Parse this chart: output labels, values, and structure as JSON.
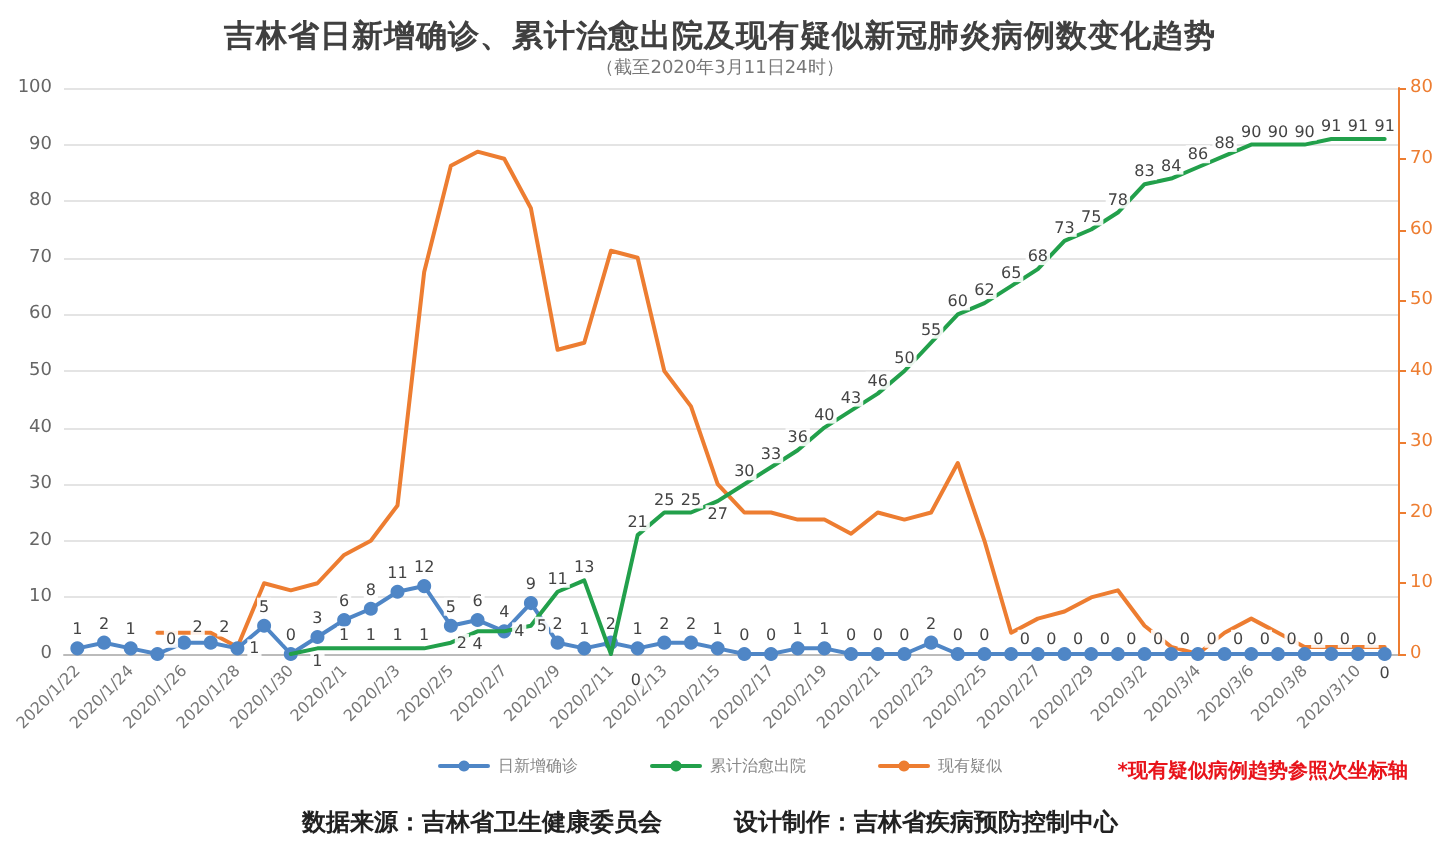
{
  "chart_data": {
    "type": "line",
    "title": "吉林省日新增确诊、累计治愈出院及现有疑似新冠肺炎病例数变化趋势",
    "subtitle": "（截至2020年3月11日24时）",
    "categories": [
      "2020/1/22",
      null,
      "2020/1/24",
      null,
      "2020/1/26",
      null,
      "2020/1/28",
      null,
      "2020/1/30",
      null,
      "2020/2/1",
      null,
      "2020/2/3",
      null,
      "2020/2/5",
      null,
      "2020/2/7",
      null,
      "2020/2/9",
      null,
      "2020/2/11",
      null,
      "2020/2/13",
      null,
      "2020/2/15",
      null,
      "2020/2/17",
      null,
      "2020/2/19",
      null,
      "2020/2/21",
      null,
      "2020/2/23",
      null,
      "2020/2/25",
      null,
      "2020/2/27",
      null,
      "2020/2/29",
      null,
      "2020/3/2",
      null,
      "2020/3/4",
      null,
      "2020/3/6",
      null,
      "2020/3/8",
      null,
      "2020/3/10",
      null
    ],
    "series": [
      {
        "name": "日新增确诊",
        "color": "#4f86c6",
        "marker": "circle",
        "values": [
          1,
          2,
          1,
          0,
          2,
          2,
          1,
          5,
          0,
          3,
          6,
          8,
          11,
          12,
          5,
          6,
          4,
          9,
          2,
          1,
          2,
          1,
          2,
          2,
          1,
          0,
          0,
          1,
          1,
          0,
          0,
          0,
          2,
          0,
          0,
          0,
          0,
          0,
          0,
          0,
          0,
          0,
          0,
          0,
          0,
          0,
          0,
          0,
          0,
          0
        ],
        "value_labels": [
          "1",
          "2",
          "1",
          "0",
          "2",
          "2",
          "1",
          "5",
          "0",
          "3",
          "6",
          "8",
          "11",
          "12",
          "5",
          "6",
          "4",
          "9",
          "2",
          "1",
          "2",
          "1",
          "2",
          "2",
          "1",
          "0",
          "0",
          "1",
          "1",
          "0",
          "0",
          "0",
          "2",
          "0",
          "0",
          "0",
          "0",
          "0",
          "0",
          "0",
          "0",
          "0",
          "0",
          "0",
          "0",
          "0",
          "0",
          "0",
          "0",
          "0"
        ]
      },
      {
        "name": "累计治愈出院",
        "color": "#22a04b",
        "marker": "none",
        "values": [
          null,
          null,
          null,
          null,
          null,
          null,
          null,
          null,
          0,
          1,
          1,
          1,
          1,
          1,
          2,
          4,
          4,
          5,
          11,
          13,
          0,
          21,
          25,
          25,
          27,
          30,
          33,
          36,
          40,
          43,
          46,
          50,
          55,
          60,
          62,
          65,
          68,
          73,
          75,
          78,
          83,
          84,
          86,
          88,
          90,
          90,
          90,
          91,
          91,
          91
        ],
        "value_labels": [
          null,
          null,
          null,
          null,
          null,
          null,
          null,
          null,
          null,
          "1",
          "1",
          "1",
          "1",
          "1",
          "2",
          "4",
          "4",
          "5",
          "11",
          "13",
          "0",
          "21",
          "25",
          "25",
          "27",
          "30",
          "33",
          "36",
          "40",
          "43",
          "46",
          "50",
          "55",
          "60",
          "62",
          "65",
          "68",
          "73",
          "75",
          "78",
          "83",
          "84",
          "86",
          "88",
          "90",
          "90",
          "90",
          "91",
          "91",
          "91"
        ]
      },
      {
        "name": "现有疑似",
        "color": "#ed7d31",
        "marker": "none",
        "axis": "y2",
        "values": [
          null,
          null,
          null,
          3,
          3,
          3,
          1,
          10,
          9,
          10,
          14,
          16,
          21,
          54,
          69,
          71,
          70,
          63,
          43,
          44,
          57,
          56,
          40,
          35,
          24,
          20,
          20,
          19,
          19,
          17,
          20,
          19,
          20,
          27,
          16,
          3,
          5,
          6,
          8,
          9,
          4,
          1,
          0,
          3,
          5,
          3,
          1,
          1,
          1,
          1
        ]
      }
    ],
    "ylim": [
      0,
      100
    ],
    "yticks": [
      0,
      10,
      20,
      30,
      40,
      50,
      60,
      70,
      80,
      90,
      100
    ],
    "y2lim": [
      0,
      80
    ],
    "y2ticks": [
      0,
      10,
      20,
      30,
      40,
      50,
      60,
      70,
      80
    ],
    "grid": "y",
    "legend": "bottom",
    "annotations": [
      "*现有疑似病例趋势参照次坐标轴",
      "数据来源：吉林省卫生健康委员会",
      "设计制作：吉林省疾病预防控制中心"
    ]
  }
}
